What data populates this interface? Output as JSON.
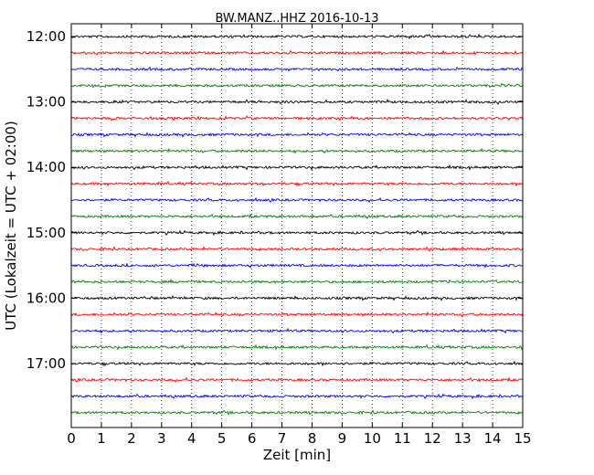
{
  "chart_data": {
    "type": "line",
    "title": "BW.MANZ..HHZ 2016-10-13",
    "xlabel": "Zeit  [min]",
    "ylabel": "UTC (Lokalzeit = UTC + 02:00)",
    "xlim": [
      0,
      15
    ],
    "x_ticks": [
      "0",
      "1",
      "2",
      "3",
      "4",
      "5",
      "6",
      "7",
      "8",
      "9",
      "10",
      "11",
      "12",
      "13",
      "14",
      "15"
    ],
    "y_ticks": [
      {
        "label": "12:00",
        "hour_offset": 0
      },
      {
        "label": "13:00",
        "hour_offset": 1
      },
      {
        "label": "14:00",
        "hour_offset": 2
      },
      {
        "label": "15:00",
        "hour_offset": 3
      },
      {
        "label": "16:00",
        "hour_offset": 4
      },
      {
        "label": "17:00",
        "hour_offset": 5
      }
    ],
    "trace_interval_min": 15,
    "trace_count": 24,
    "trace_start": "12:00",
    "trace_colors": [
      "#000000",
      "#ff0000",
      "#0000ff",
      "#008000"
    ],
    "grid": "vertical dotted"
  }
}
